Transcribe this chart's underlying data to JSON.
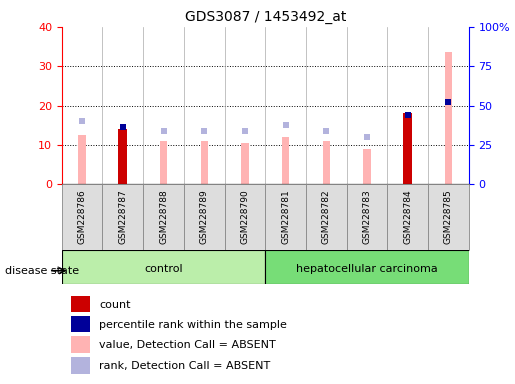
{
  "title": "GDS3087 / 1453492_at",
  "samples": [
    "GSM228786",
    "GSM228787",
    "GSM228788",
    "GSM228789",
    "GSM228790",
    "GSM228781",
    "GSM228782",
    "GSM228783",
    "GSM228784",
    "GSM228785"
  ],
  "count_values": [
    0,
    14,
    0,
    0,
    0,
    0,
    0,
    0,
    18,
    0
  ],
  "percentile_values_left": [
    0,
    14.5,
    0,
    0,
    0,
    0,
    0,
    0,
    17.5,
    21
  ],
  "value_absent": [
    12.5,
    0,
    11,
    11,
    10.5,
    12,
    11,
    9,
    0,
    33.5
  ],
  "rank_absent": [
    16,
    0,
    13.5,
    13.5,
    13.5,
    15,
    13.5,
    12,
    0,
    0
  ],
  "left_ylim": [
    0,
    40
  ],
  "right_ylim": [
    0,
    100
  ],
  "left_yticks": [
    0,
    10,
    20,
    30,
    40
  ],
  "right_yticks": [
    0,
    25,
    50,
    75,
    100
  ],
  "right_yticklabels": [
    "0",
    "25",
    "50",
    "75",
    "100%"
  ],
  "color_count": "#cc0000",
  "color_percentile": "#000099",
  "color_value_absent": "#ffb3b3",
  "color_rank_absent": "#b3b3dd",
  "color_control_bg": "#bbeeaa",
  "color_hcc_bg": "#77dd77",
  "color_sample_box": "#dddddd",
  "n_control": 5,
  "n_hcc": 5,
  "group_label_control": "control",
  "group_label_hcc": "hepatocellular carcinoma",
  "disease_state_label": "disease state",
  "legend_items": [
    "count",
    "percentile rank within the sample",
    "value, Detection Call = ABSENT",
    "rank, Detection Call = ABSENT"
  ],
  "legend_colors": [
    "#cc0000",
    "#000099",
    "#ffb3b3",
    "#b3b3dd"
  ]
}
